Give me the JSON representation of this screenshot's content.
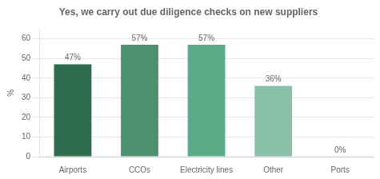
{
  "chart_data": {
    "type": "bar",
    "title": "Yes, we carry out due diligence checks on new suppliers",
    "categories": [
      "Airports",
      "CCOs",
      "Electricity lines",
      "Other",
      "Ports"
    ],
    "values": [
      47,
      57,
      57,
      36,
      0
    ],
    "value_labels": [
      "47%",
      "57%",
      "57%",
      "36%",
      "0%"
    ],
    "colors": [
      "#2e6b4f",
      "#4d9070",
      "#5aaa87",
      "#8abfaa",
      "#c5ddd5"
    ],
    "ylabel": "%",
    "ylim": [
      0,
      65
    ],
    "yticks": [
      0,
      10,
      20,
      30,
      40,
      50,
      60
    ],
    "grid": true,
    "data_labels": true
  }
}
